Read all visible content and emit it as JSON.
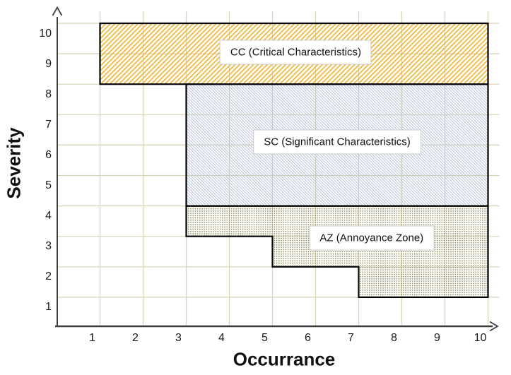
{
  "chart_data": {
    "type": "area",
    "subtype": "zone-grid-risk-matrix",
    "title": "",
    "xlabel": "Occurrance",
    "ylabel": "Severity",
    "x_ticks": [
      "1",
      "2",
      "3",
      "4",
      "5",
      "6",
      "7",
      "8",
      "9",
      "10"
    ],
    "y_ticks": [
      "1",
      "2",
      "3",
      "4",
      "5",
      "6",
      "7",
      "8",
      "9",
      "10"
    ],
    "xlim": [
      0,
      10.3
    ],
    "ylim": [
      0,
      10.3
    ],
    "grid": true,
    "legend_position": "none",
    "zones": [
      {
        "id": "CC",
        "label": "CC (Critical Characteristics)",
        "occurrence_range": [
          1,
          10
        ],
        "severity_range": [
          8,
          10
        ],
        "polygon": [
          [
            1,
            8
          ],
          [
            1,
            10
          ],
          [
            10,
            10
          ],
          [
            10,
            8
          ]
        ],
        "pattern": "diagonal-hatch-down",
        "pattern_color": "#eeb32b",
        "label_center": [
          5.54,
          9.05
        ]
      },
      {
        "id": "SC",
        "label": "SC (Significant Characteristics)",
        "occurrence_range": [
          3,
          10
        ],
        "severity_range": [
          4,
          8
        ],
        "polygon": [
          [
            3,
            4
          ],
          [
            3,
            8
          ],
          [
            10,
            8
          ],
          [
            10,
            4
          ]
        ],
        "pattern": "diagonal-hatch-up",
        "pattern_color": "#b6c2d6",
        "label_center": [
          6.5,
          6.1
        ]
      },
      {
        "id": "AZ",
        "label": "AZ (Annoyance Zone)",
        "occurrence_range": [
          3,
          10
        ],
        "severity_top": 4,
        "severity_steps": [
          {
            "occurrence_from": 3,
            "occurrence_to": 5,
            "severity_bottom": 3
          },
          {
            "occurrence_from": 5,
            "occurrence_to": 7,
            "severity_bottom": 2
          },
          {
            "occurrence_from": 7,
            "occurrence_to": 10,
            "severity_bottom": 1
          }
        ],
        "polygon": [
          [
            3,
            4
          ],
          [
            3,
            3
          ],
          [
            5,
            3
          ],
          [
            5,
            2
          ],
          [
            7,
            2
          ],
          [
            7,
            1
          ],
          [
            10,
            1
          ],
          [
            10,
            4
          ]
        ],
        "pattern": "dots",
        "pattern_color": "#7d7a3a",
        "label_center": [
          7.3,
          2.95
        ]
      }
    ],
    "colors": {
      "background": "#ffffff",
      "grid": "#d8d2b6",
      "zone_border": "#000000",
      "axis": "#3f3f3f",
      "label_box_fill": "#ffffff",
      "label_box_border": "#c8c8c8",
      "text": "#1a1a1a"
    }
  }
}
